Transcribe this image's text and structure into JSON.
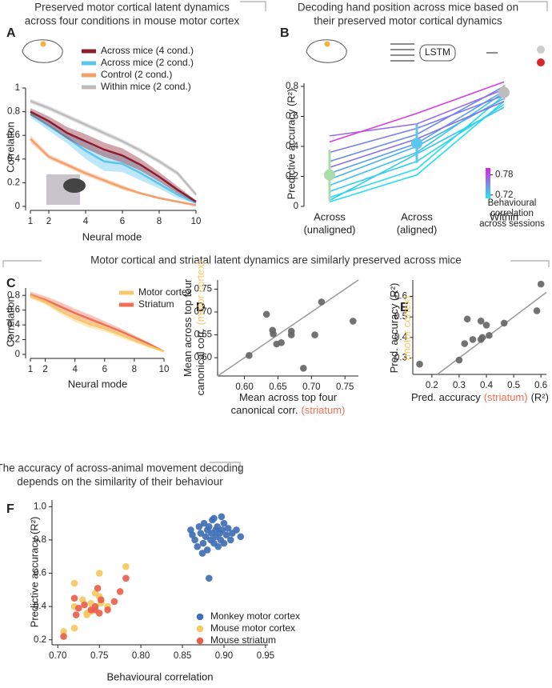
{
  "chart_data": [
    {
      "type": "line",
      "panel": "A",
      "title": [
        "Preserved motor cortical latent dynamics",
        "across four conditions in mouse motor cortex"
      ],
      "xlabel": "Neural mode",
      "ylabel": "Correlation",
      "x": [
        1,
        2,
        3,
        4,
        5,
        6,
        7,
        8,
        9,
        10
      ],
      "xlim": [
        1,
        10
      ],
      "xticks": [
        1,
        2,
        4,
        6,
        8,
        10
      ],
      "ylim": [
        0,
        1
      ],
      "yticks": [
        0,
        0.2,
        0.4,
        0.6,
        0.8,
        1
      ],
      "series": [
        {
          "name": "Across mice (4 cond.)",
          "color": "#8c1d2f",
          "values": [
            0.8,
            0.72,
            0.62,
            0.55,
            0.48,
            0.43,
            0.35,
            0.25,
            0.14,
            0.04
          ],
          "errors": [
            0.03,
            0.04,
            0.05,
            0.06,
            0.06,
            0.06,
            0.05,
            0.04,
            0.03,
            0.01
          ]
        },
        {
          "name": "Across mice (2 cond.)",
          "color": "#5cc6ee",
          "values": [
            0.78,
            0.68,
            0.58,
            0.47,
            0.38,
            0.36,
            0.28,
            0.19,
            0.1,
            0.03
          ],
          "errors": [
            0.03,
            0.04,
            0.05,
            0.07,
            0.08,
            0.07,
            0.06,
            0.04,
            0.03,
            0.01
          ]
        },
        {
          "name": "Control (2 cond.)",
          "color": "#f3a06b",
          "values": [
            0.57,
            0.42,
            0.35,
            0.28,
            0.22,
            0.16,
            0.11,
            0.07,
            0.04,
            0.01
          ],
          "errors": [
            0.03,
            0.02,
            0.02,
            0.02,
            0.02,
            0.02,
            0.01,
            0.01,
            0.01,
            0.01
          ]
        },
        {
          "name": "Within mice (2 cond.)",
          "color": "#bdbdbd",
          "values": [
            0.89,
            0.83,
            0.76,
            0.69,
            0.62,
            0.55,
            0.47,
            0.38,
            0.28,
            0.1
          ],
          "errors": [
            0.02,
            0.02,
            0.02,
            0.02,
            0.02,
            0.02,
            0.02,
            0.02,
            0.02,
            0.02
          ]
        }
      ]
    },
    {
      "type": "line",
      "panel": "B",
      "title": [
        "Decoding hand position across mice based on",
        "their preserved motor cortical dynamics"
      ],
      "ylabel": "Predictive accuracy (R²)",
      "diagram_label": "LSTM",
      "categories": [
        "Across",
        "Across",
        "Within"
      ],
      "category_notes": [
        "(unaligned)",
        "(aligned)",
        null
      ],
      "ylim": [
        0,
        0.8
      ],
      "yticks": [
        0,
        0.2,
        0.4,
        0.6,
        0.8
      ],
      "series": [
        {
          "color": "#d63fe0",
          "values": [
            0.43,
            0.62,
            0.83
          ]
        },
        {
          "color": "#9a6ee8",
          "values": [
            0.47,
            0.55,
            0.78
          ]
        },
        {
          "color": "#7a7ee8",
          "values": [
            0.36,
            0.52,
            0.74
          ]
        },
        {
          "color": "#6a8ae8",
          "values": [
            0.3,
            0.48,
            0.8
          ]
        },
        {
          "color": "#8a70e6",
          "values": [
            0.26,
            0.45,
            0.7
          ]
        },
        {
          "color": "#5aa0ea",
          "values": [
            0.22,
            0.42,
            0.77
          ]
        },
        {
          "color": "#48b4ec",
          "values": [
            0.18,
            0.4,
            0.72
          ]
        },
        {
          "color": "#3cc4ee",
          "values": [
            0.14,
            0.36,
            0.76
          ]
        },
        {
          "color": "#30d0ee",
          "values": [
            0.1,
            0.3,
            0.68
          ]
        },
        {
          "color": "#28dcf0",
          "values": [
            0.06,
            0.25,
            0.74
          ]
        },
        {
          "color": "#20e0f0",
          "values": [
            0.03,
            0.21,
            0.7
          ]
        },
        {
          "color": "#36c8ee",
          "values": [
            0.04,
            0.35,
            0.66
          ]
        }
      ],
      "means": {
        "values": [
          0.21,
          0.42,
          0.76
        ],
        "errors": [
          0.17,
          0.13,
          0.05
        ],
        "colors": [
          "#a8dca8",
          "#5cc6ee",
          "#bdbdbd"
        ]
      },
      "colorbar": {
        "lim": [
          0.71,
          0.8
        ],
        "ticks": [
          0.72,
          0.78
        ],
        "colors": [
          "#20e8f0",
          "#e020e8"
        ],
        "label": [
          "Behavioural",
          "correlation",
          "across sessions"
        ]
      }
    },
    {
      "type": "line",
      "panel": "C",
      "title": [
        "Motor cortical and striatal latent dynamics are similarly preserved across mice"
      ],
      "xlabel": "Neural mode",
      "ylabel": "Correlation",
      "x": [
        1,
        2,
        3,
        4,
        5,
        6,
        7,
        8,
        9,
        10
      ],
      "xlim": [
        1,
        10
      ],
      "xticks": [
        1,
        2,
        4,
        6,
        8,
        10
      ],
      "ylim": [
        0,
        0.9
      ],
      "yticks": [
        0,
        0.2,
        0.4,
        0.6,
        0.8
      ],
      "series": [
        {
          "name": "Motor cortex",
          "color": "#f8c86a",
          "values": [
            0.79,
            0.71,
            0.59,
            0.49,
            0.41,
            0.35,
            0.27,
            0.19,
            0.11,
            0.04
          ],
          "errors": [
            0.03,
            0.03,
            0.04,
            0.05,
            0.05,
            0.04,
            0.04,
            0.03,
            0.02,
            0.01
          ]
        },
        {
          "name": "Striatum",
          "color": "#ef6f52",
          "values": [
            0.81,
            0.74,
            0.65,
            0.56,
            0.48,
            0.4,
            0.32,
            0.23,
            0.14,
            0.04
          ],
          "errors": [
            0.04,
            0.05,
            0.06,
            0.06,
            0.06,
            0.05,
            0.04,
            0.03,
            0.02,
            0.01
          ]
        }
      ]
    },
    {
      "type": "scatter",
      "panel": "D",
      "identity_line": true,
      "xlabel": [
        [
          {
            "text": "Mean across top four"
          }
        ],
        [
          {
            "text": "canonical corr."
          },
          {
            "text": "(striatum)",
            "color": "#ef6f52"
          }
        ]
      ],
      "ylabel": [
        [
          {
            "text": "Mean across top four"
          }
        ],
        [
          {
            "text": "canonical corr."
          },
          {
            "text": "(motor cortex)",
            "color": "#f8c86a"
          }
        ]
      ],
      "xlim": [
        0.56,
        0.77
      ],
      "xticks": [
        {
          "value": 0.6,
          "label": "0.60"
        },
        0.65,
        {
          "value": 0.7,
          "label": "0.70"
        },
        0.75
      ],
      "ylim": [
        0.56,
        0.77
      ],
      "yticks": [
        {
          "value": 0.6,
          "label": "0.60"
        },
        0.65,
        {
          "value": 0.7,
          "label": "0.70"
        },
        0.75
      ],
      "series": [
        {
          "color": "#666666",
          "x": [
            0.607,
            0.633,
            0.642,
            0.643,
            0.648,
            0.655,
            0.67,
            0.67,
            0.688,
            0.705,
            0.715,
            0.762
          ],
          "values": [
            0.605,
            0.695,
            0.66,
            0.652,
            0.63,
            0.633,
            0.658,
            0.65,
            0.577,
            0.65,
            0.722,
            0.68
          ]
        }
      ]
    },
    {
      "type": "scatter",
      "panel": "E",
      "identity_line": true,
      "xlabel": [
        [
          {
            "text": "Pred. accuracy"
          },
          {
            "text": "(striatum)",
            "color": "#ef6f52"
          },
          {
            "text": "(R²)"
          }
        ]
      ],
      "ylabel": [
        [
          {
            "text": "Pred. accuracy (R²)"
          }
        ],
        [
          {
            "text": "(motor cortex)",
            "color": "#f8c86a"
          }
        ]
      ],
      "xlim": [
        0.13,
        0.62
      ],
      "xticks": [
        0.2,
        0.3,
        0.4,
        0.5,
        0.6
      ],
      "ylim": [
        0.22,
        0.68
      ],
      "yticks": [
        0.3,
        0.4,
        0.5,
        0.6
      ],
      "series": [
        {
          "color": "#666666",
          "x": [
            0.155,
            0.3,
            0.32,
            0.33,
            0.35,
            0.38,
            0.38,
            0.385,
            0.4,
            0.41,
            0.465,
            0.585,
            0.6
          ],
          "values": [
            0.27,
            0.29,
            0.37,
            0.49,
            0.39,
            0.39,
            0.48,
            0.4,
            0.46,
            0.41,
            0.47,
            0.53,
            0.66
          ]
        }
      ]
    },
    {
      "type": "scatter",
      "panel": "F",
      "title": [
        "The accuracy of across-animal movement decoding",
        "depends on the similarity of their behaviour"
      ],
      "xlabel": "Behavioural correlation",
      "ylabel": "Predictive accuracy (R²)",
      "xlim": [
        0.693,
        0.953
      ],
      "xticks": [
        {
          "value": 0.7,
          "label": "0.70"
        },
        0.75,
        {
          "value": 0.8,
          "label": "0.80"
        },
        0.85,
        {
          "value": 0.9,
          "label": "0.90"
        },
        0.95
      ],
      "ylim": [
        0.17,
        1.04
      ],
      "yticks": [
        0.2,
        0.4,
        0.6,
        0.8,
        {
          "value": 1,
          "label": "1.0"
        }
      ],
      "series": [
        {
          "name": "Monkey motor cortex",
          "color": "#3f6fb5",
          "x": [
            0.86,
            0.865,
            0.868,
            0.87,
            0.872,
            0.875,
            0.876,
            0.878,
            0.88,
            0.88,
            0.882,
            0.884,
            0.885,
            0.886,
            0.888,
            0.89,
            0.89,
            0.892,
            0.893,
            0.895,
            0.896,
            0.898,
            0.9,
            0.9,
            0.903,
            0.905,
            0.908,
            0.91,
            0.915,
            0.92,
            0.874,
            0.882,
            0.888,
            0.862,
            0.897
          ],
          "values": [
            0.86,
            0.8,
            0.76,
            0.88,
            0.84,
            0.78,
            0.9,
            0.82,
            0.86,
            0.74,
            0.88,
            0.8,
            0.84,
            0.92,
            0.78,
            0.86,
            0.82,
            0.88,
            0.76,
            0.84,
            0.8,
            0.86,
            0.9,
            0.78,
            0.83,
            0.87,
            0.8,
            0.84,
            0.86,
            0.82,
            0.72,
            0.57,
            0.93,
            0.83,
            0.94
          ]
        },
        {
          "name": "Mouse motor cortex",
          "color": "#f6c85f",
          "x": [
            0.707,
            0.72,
            0.72,
            0.72,
            0.73,
            0.735,
            0.74,
            0.745,
            0.75,
            0.75,
            0.752,
            0.76,
            0.782,
            0.74,
            0.735
          ],
          "values": [
            0.25,
            0.27,
            0.54,
            0.4,
            0.44,
            0.36,
            0.42,
            0.48,
            0.6,
            0.46,
            0.42,
            0.4,
            0.64,
            0.37,
            0.35
          ]
        },
        {
          "name": "Mouse striatum",
          "color": "#e9604a",
          "x": [
            0.707,
            0.72,
            0.722,
            0.725,
            0.732,
            0.74,
            0.745,
            0.748,
            0.75,
            0.752,
            0.76,
            0.768,
            0.775,
            0.782,
            0.745
          ],
          "values": [
            0.22,
            0.45,
            0.35,
            0.39,
            0.41,
            0.38,
            0.38,
            0.51,
            0.36,
            0.44,
            0.38,
            0.43,
            0.49,
            0.57,
            0.4
          ]
        }
      ]
    }
  ]
}
